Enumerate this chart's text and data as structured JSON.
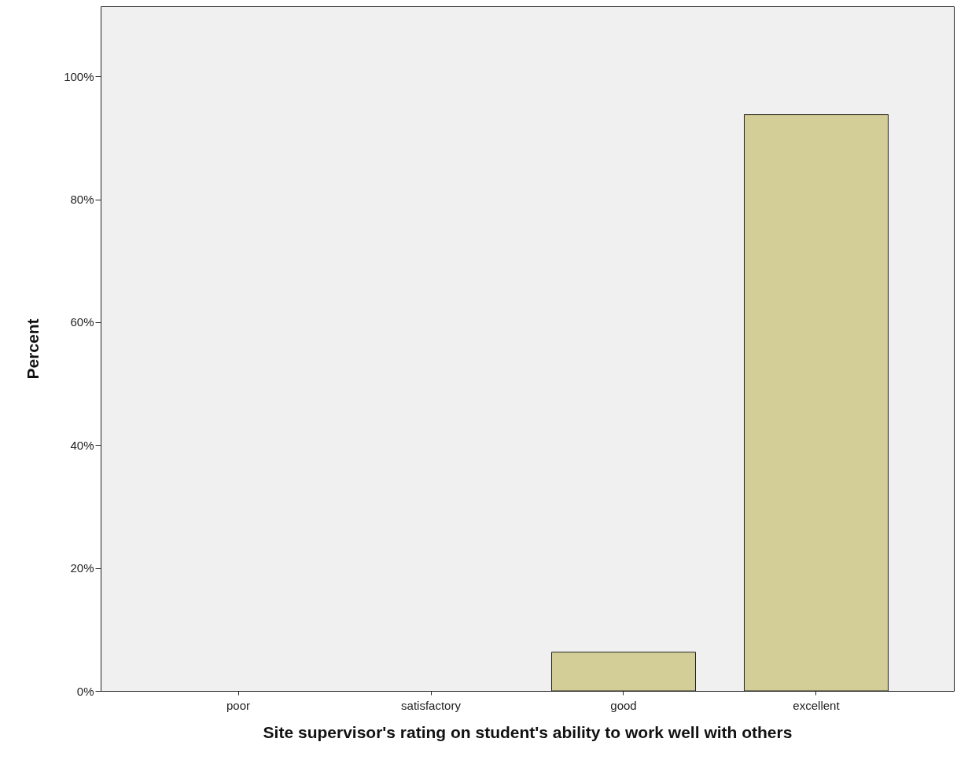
{
  "chart_data": {
    "type": "bar",
    "xlabel": "Site supervisor's rating on student's ability to work well with others",
    "ylabel": "Percent",
    "categories": [
      "poor",
      "satisfactory",
      "good",
      "excellent"
    ],
    "values": [
      0,
      0,
      6.3,
      93.8
    ],
    "color": "#d3ce97",
    "ylim": [
      0,
      111.4
    ],
    "yticks": [
      {
        "value": 0,
        "label": "0%"
      },
      {
        "value": 20,
        "label": "20%"
      },
      {
        "value": 40,
        "label": "40%"
      },
      {
        "value": 60,
        "label": "60%"
      },
      {
        "value": 80,
        "label": "80%"
      },
      {
        "value": 100,
        "label": "100%"
      }
    ],
    "grid": false
  }
}
